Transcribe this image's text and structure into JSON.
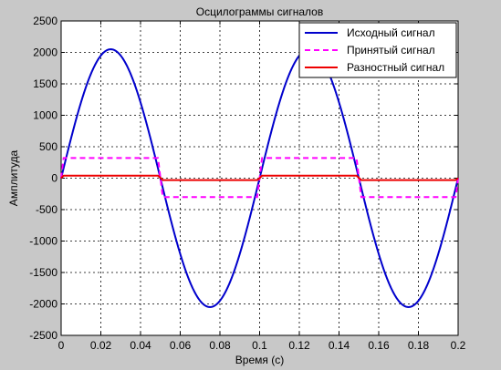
{
  "chart_data": {
    "type": "line",
    "title": "Осцилограммы сигналов",
    "xlabel": "Время (с)",
    "ylabel": "Амплитуда",
    "xlim": [
      0,
      0.2
    ],
    "ylim": [
      -2500,
      2500
    ],
    "xticks": [
      "0",
      "0.02",
      "0.04",
      "0.06",
      "0.08",
      "0.1",
      "0.12",
      "0.14",
      "0.16",
      "0.18",
      "0.2"
    ],
    "yticks": [
      "-2500",
      "-2000",
      "-1500",
      "-1000",
      "-500",
      "0",
      "500",
      "1000",
      "1500",
      "2000",
      "2500"
    ],
    "grid": true,
    "legend_position": "top-right",
    "series": [
      {
        "name": "Исходный сигнал",
        "color": "#0000cc",
        "style": "solid",
        "shape": "sine",
        "amplitude": 2050,
        "frequency_hz": 10
      },
      {
        "name": "Принятый сигнал",
        "color": "#ff00ff",
        "style": "dashed",
        "shape": "square",
        "high": 320,
        "low": -300,
        "frequency_hz": 10
      },
      {
        "name": "Разностный сигнал",
        "color": "#ee0000",
        "style": "solid",
        "shape": "square",
        "high": 40,
        "low": -30,
        "frequency_hz": 10
      }
    ]
  }
}
